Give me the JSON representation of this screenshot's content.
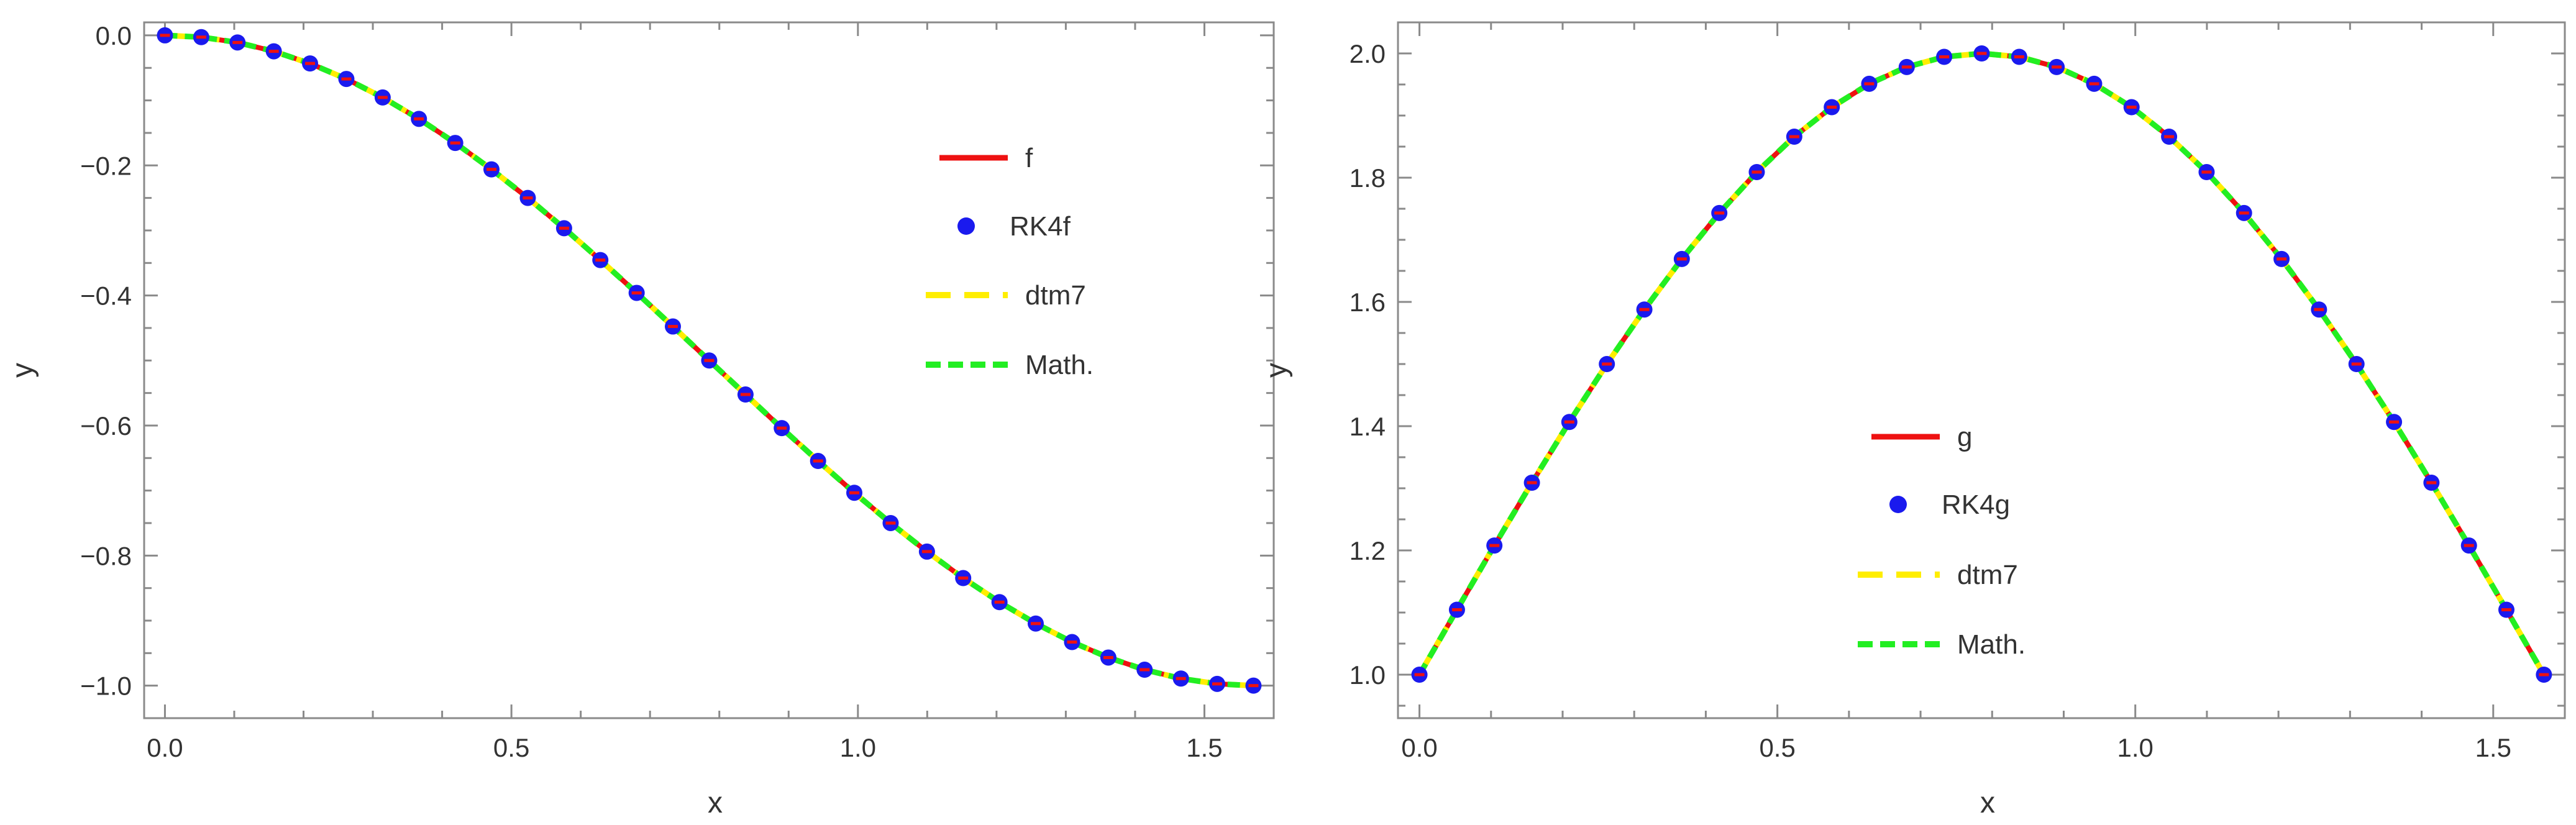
{
  "chart_data": [
    {
      "type": "line",
      "title": "",
      "xlabel": "x",
      "ylabel": "y",
      "xlim": [
        -0.03,
        1.6
      ],
      "ylim": [
        -1.05,
        0.02
      ],
      "x_ticks": [
        0.0,
        0.5,
        1.0,
        1.5
      ],
      "x_tick_labels": [
        "0.0",
        "0.5",
        "1.0",
        "1.5"
      ],
      "y_ticks": [
        0.0,
        -0.2,
        -0.4,
        -0.6,
        -0.8,
        -1.0
      ],
      "y_tick_labels": [
        "0.0",
        "−0.2",
        "−0.4",
        "−0.6",
        "−0.8",
        "−1.0"
      ],
      "function": "f(x) = cos(2x)/2 - 1/2 on [0, pi/2]",
      "x": [
        0.0,
        0.0524,
        0.1047,
        0.1571,
        0.2094,
        0.2618,
        0.3142,
        0.3665,
        0.4189,
        0.4712,
        0.5236,
        0.576,
        0.6283,
        0.6807,
        0.733,
        0.7854,
        0.8378,
        0.8901,
        0.9425,
        0.9948,
        1.0472,
        1.0996,
        1.1519,
        1.2043,
        1.2566,
        1.309,
        1.3614,
        1.4137,
        1.4661,
        1.5184,
        1.5708
      ],
      "y": [
        0.0,
        -0.0027,
        -0.0109,
        -0.0245,
        -0.0432,
        -0.067,
        -0.0955,
        -0.1284,
        -0.1654,
        -0.2061,
        -0.25,
        -0.2966,
        -0.3455,
        -0.396,
        -0.4477,
        -0.5,
        -0.5523,
        -0.604,
        -0.6545,
        -0.7034,
        -0.75,
        -0.7939,
        -0.8346,
        -0.8716,
        -0.9045,
        -0.933,
        -0.9568,
        -0.9755,
        -0.9891,
        -0.9973,
        -1.0
      ],
      "series": [
        {
          "name": "f",
          "style": "solid",
          "color": "#ee1111"
        },
        {
          "name": "RK4f",
          "style": "points",
          "color": "#1a1aee"
        },
        {
          "name": "dtm7",
          "style": "long-dash",
          "color": "#ffee00"
        },
        {
          "name": "Math.",
          "style": "dash",
          "color": "#22ee22"
        }
      ],
      "legend_position": "right"
    },
    {
      "type": "line",
      "title": "",
      "xlabel": "x",
      "ylabel": "y",
      "xlim": [
        -0.03,
        1.6
      ],
      "ylim": [
        0.93,
        2.05
      ],
      "x_ticks": [
        0.0,
        0.5,
        1.0,
        1.5
      ],
      "x_tick_labels": [
        "0.0",
        "0.5",
        "1.0",
        "1.5"
      ],
      "y_ticks": [
        1.0,
        1.2,
        1.4,
        1.6,
        1.8,
        2.0
      ],
      "y_tick_labels": [
        "1.0",
        "1.2",
        "1.4",
        "1.6",
        "1.8",
        "2.0"
      ],
      "function": "g(x) = 1 + sin(2x) on [0, pi/2]",
      "x": [
        0.0,
        0.0524,
        0.1047,
        0.1571,
        0.2094,
        0.2618,
        0.3142,
        0.3665,
        0.4189,
        0.4712,
        0.5236,
        0.576,
        0.6283,
        0.6807,
        0.733,
        0.7854,
        0.8378,
        0.8901,
        0.9425,
        0.9948,
        1.0472,
        1.0996,
        1.1519,
        1.2043,
        1.2566,
        1.309,
        1.3614,
        1.4137,
        1.4661,
        1.5184,
        1.5708
      ],
      "y": [
        1.0,
        1.1045,
        1.2079,
        1.309,
        1.4067,
        1.5,
        1.5878,
        1.6691,
        1.7431,
        1.809,
        1.866,
        1.9135,
        1.9511,
        1.9781,
        1.9945,
        2.0,
        1.9945,
        1.9781,
        1.9511,
        1.9135,
        1.866,
        1.809,
        1.7431,
        1.6691,
        1.5878,
        1.5,
        1.4067,
        1.309,
        1.2079,
        1.1045,
        1.0
      ],
      "series": [
        {
          "name": "g",
          "style": "solid",
          "color": "#ee1111"
        },
        {
          "name": "RK4g",
          "style": "points",
          "color": "#1a1aee"
        },
        {
          "name": "dtm7",
          "style": "long-dash",
          "color": "#ffee00"
        },
        {
          "name": "Math.",
          "style": "dash",
          "color": "#22ee22"
        }
      ],
      "legend_position": "center"
    }
  ]
}
